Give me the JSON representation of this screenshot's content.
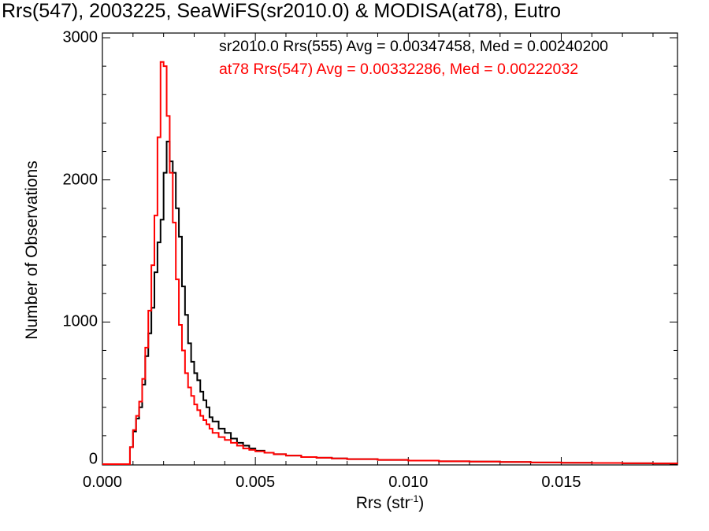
{
  "chart_data": {
    "type": "line",
    "title": "Rrs(547), 2003225, SeaWiFS(sr2010.0) & MODISA(at78), Eutro",
    "xlabel_main": "Rrs (str",
    "xlabel_sup": "-1",
    "xlabel_close": ")",
    "ylabel": "Number of Observations",
    "xlim": [
      0.0,
      0.0188
    ],
    "ylim": [
      0,
      3000
    ],
    "xticks": [
      {
        "value": 0.0,
        "label": "0.000"
      },
      {
        "value": 0.005,
        "label": "0.005"
      },
      {
        "value": 0.01,
        "label": "0.010"
      },
      {
        "value": 0.015,
        "label": "0.015"
      }
    ],
    "yticks": [
      {
        "value": 0,
        "label": "0"
      },
      {
        "value": 1000,
        "label": "1000"
      },
      {
        "value": 2000,
        "label": "2000"
      },
      {
        "value": 3000,
        "label": "3000"
      }
    ],
    "grid": false,
    "annotations": [
      {
        "text": "sr2010.0 Rrs(555) Avg = 0.00347458, Med = 0.00240200",
        "color": "#000000"
      },
      {
        "text": "at78 Rrs(547) Avg = 0.00332286, Med = 0.00222032",
        "color": "#ff0000"
      }
    ],
    "series": [
      {
        "color": "#000000",
        "x": [
          0.0,
          0.0008,
          0.0009,
          0.001,
          0.0011,
          0.0012,
          0.0013,
          0.0014,
          0.0015,
          0.0016,
          0.0017,
          0.0018,
          0.0019,
          0.002,
          0.0021,
          0.0022,
          0.0023,
          0.0024,
          0.0025,
          0.0026,
          0.0027,
          0.0028,
          0.0029,
          0.003,
          0.0031,
          0.0032,
          0.0033,
          0.0034,
          0.0035,
          0.0036,
          0.0038,
          0.004,
          0.0042,
          0.0044,
          0.0046,
          0.0048,
          0.005,
          0.0053,
          0.0056,
          0.006,
          0.0065,
          0.007,
          0.0075,
          0.008,
          0.009,
          0.01,
          0.011,
          0.012,
          0.013,
          0.014,
          0.015,
          0.016,
          0.017,
          0.018,
          0.0188
        ],
        "values": [
          0,
          0,
          120,
          230,
          320,
          400,
          560,
          760,
          920,
          1100,
          1350,
          1560,
          1720,
          2050,
          2270,
          2130,
          2050,
          1800,
          1600,
          1250,
          1050,
          850,
          720,
          640,
          590,
          510,
          450,
          400,
          330,
          300,
          250,
          220,
          180,
          150,
          130,
          110,
          95,
          80,
          70,
          60,
          50,
          45,
          40,
          35,
          30,
          25,
          20,
          18,
          15,
          12,
          10,
          8,
          6,
          5,
          3
        ]
      },
      {
        "color": "#ff0000",
        "x": [
          0.0,
          0.0008,
          0.0009,
          0.001,
          0.0011,
          0.0012,
          0.0013,
          0.0014,
          0.0015,
          0.0016,
          0.0017,
          0.0018,
          0.0019,
          0.002,
          0.0021,
          0.0022,
          0.0023,
          0.0024,
          0.0025,
          0.0026,
          0.0027,
          0.0028,
          0.0029,
          0.003,
          0.0031,
          0.0032,
          0.0033,
          0.0034,
          0.0035,
          0.0036,
          0.0038,
          0.004,
          0.0042,
          0.0044,
          0.0046,
          0.0048,
          0.005,
          0.0053,
          0.0056,
          0.006,
          0.0065,
          0.007,
          0.0075,
          0.008,
          0.009,
          0.01,
          0.011,
          0.012,
          0.013,
          0.014,
          0.015,
          0.016,
          0.017,
          0.018,
          0.0188
        ],
        "values": [
          0,
          0,
          120,
          240,
          340,
          440,
          600,
          820,
          1080,
          1400,
          1750,
          2300,
          2830,
          2800,
          2450,
          2050,
          1700,
          1300,
          980,
          800,
          640,
          540,
          480,
          420,
          380,
          340,
          310,
          280,
          250,
          220,
          190,
          170,
          150,
          130,
          110,
          100,
          90,
          80,
          70,
          60,
          50,
          45,
          40,
          35,
          30,
          25,
          20,
          18,
          15,
          12,
          10,
          8,
          6,
          5,
          3
        ]
      }
    ]
  }
}
